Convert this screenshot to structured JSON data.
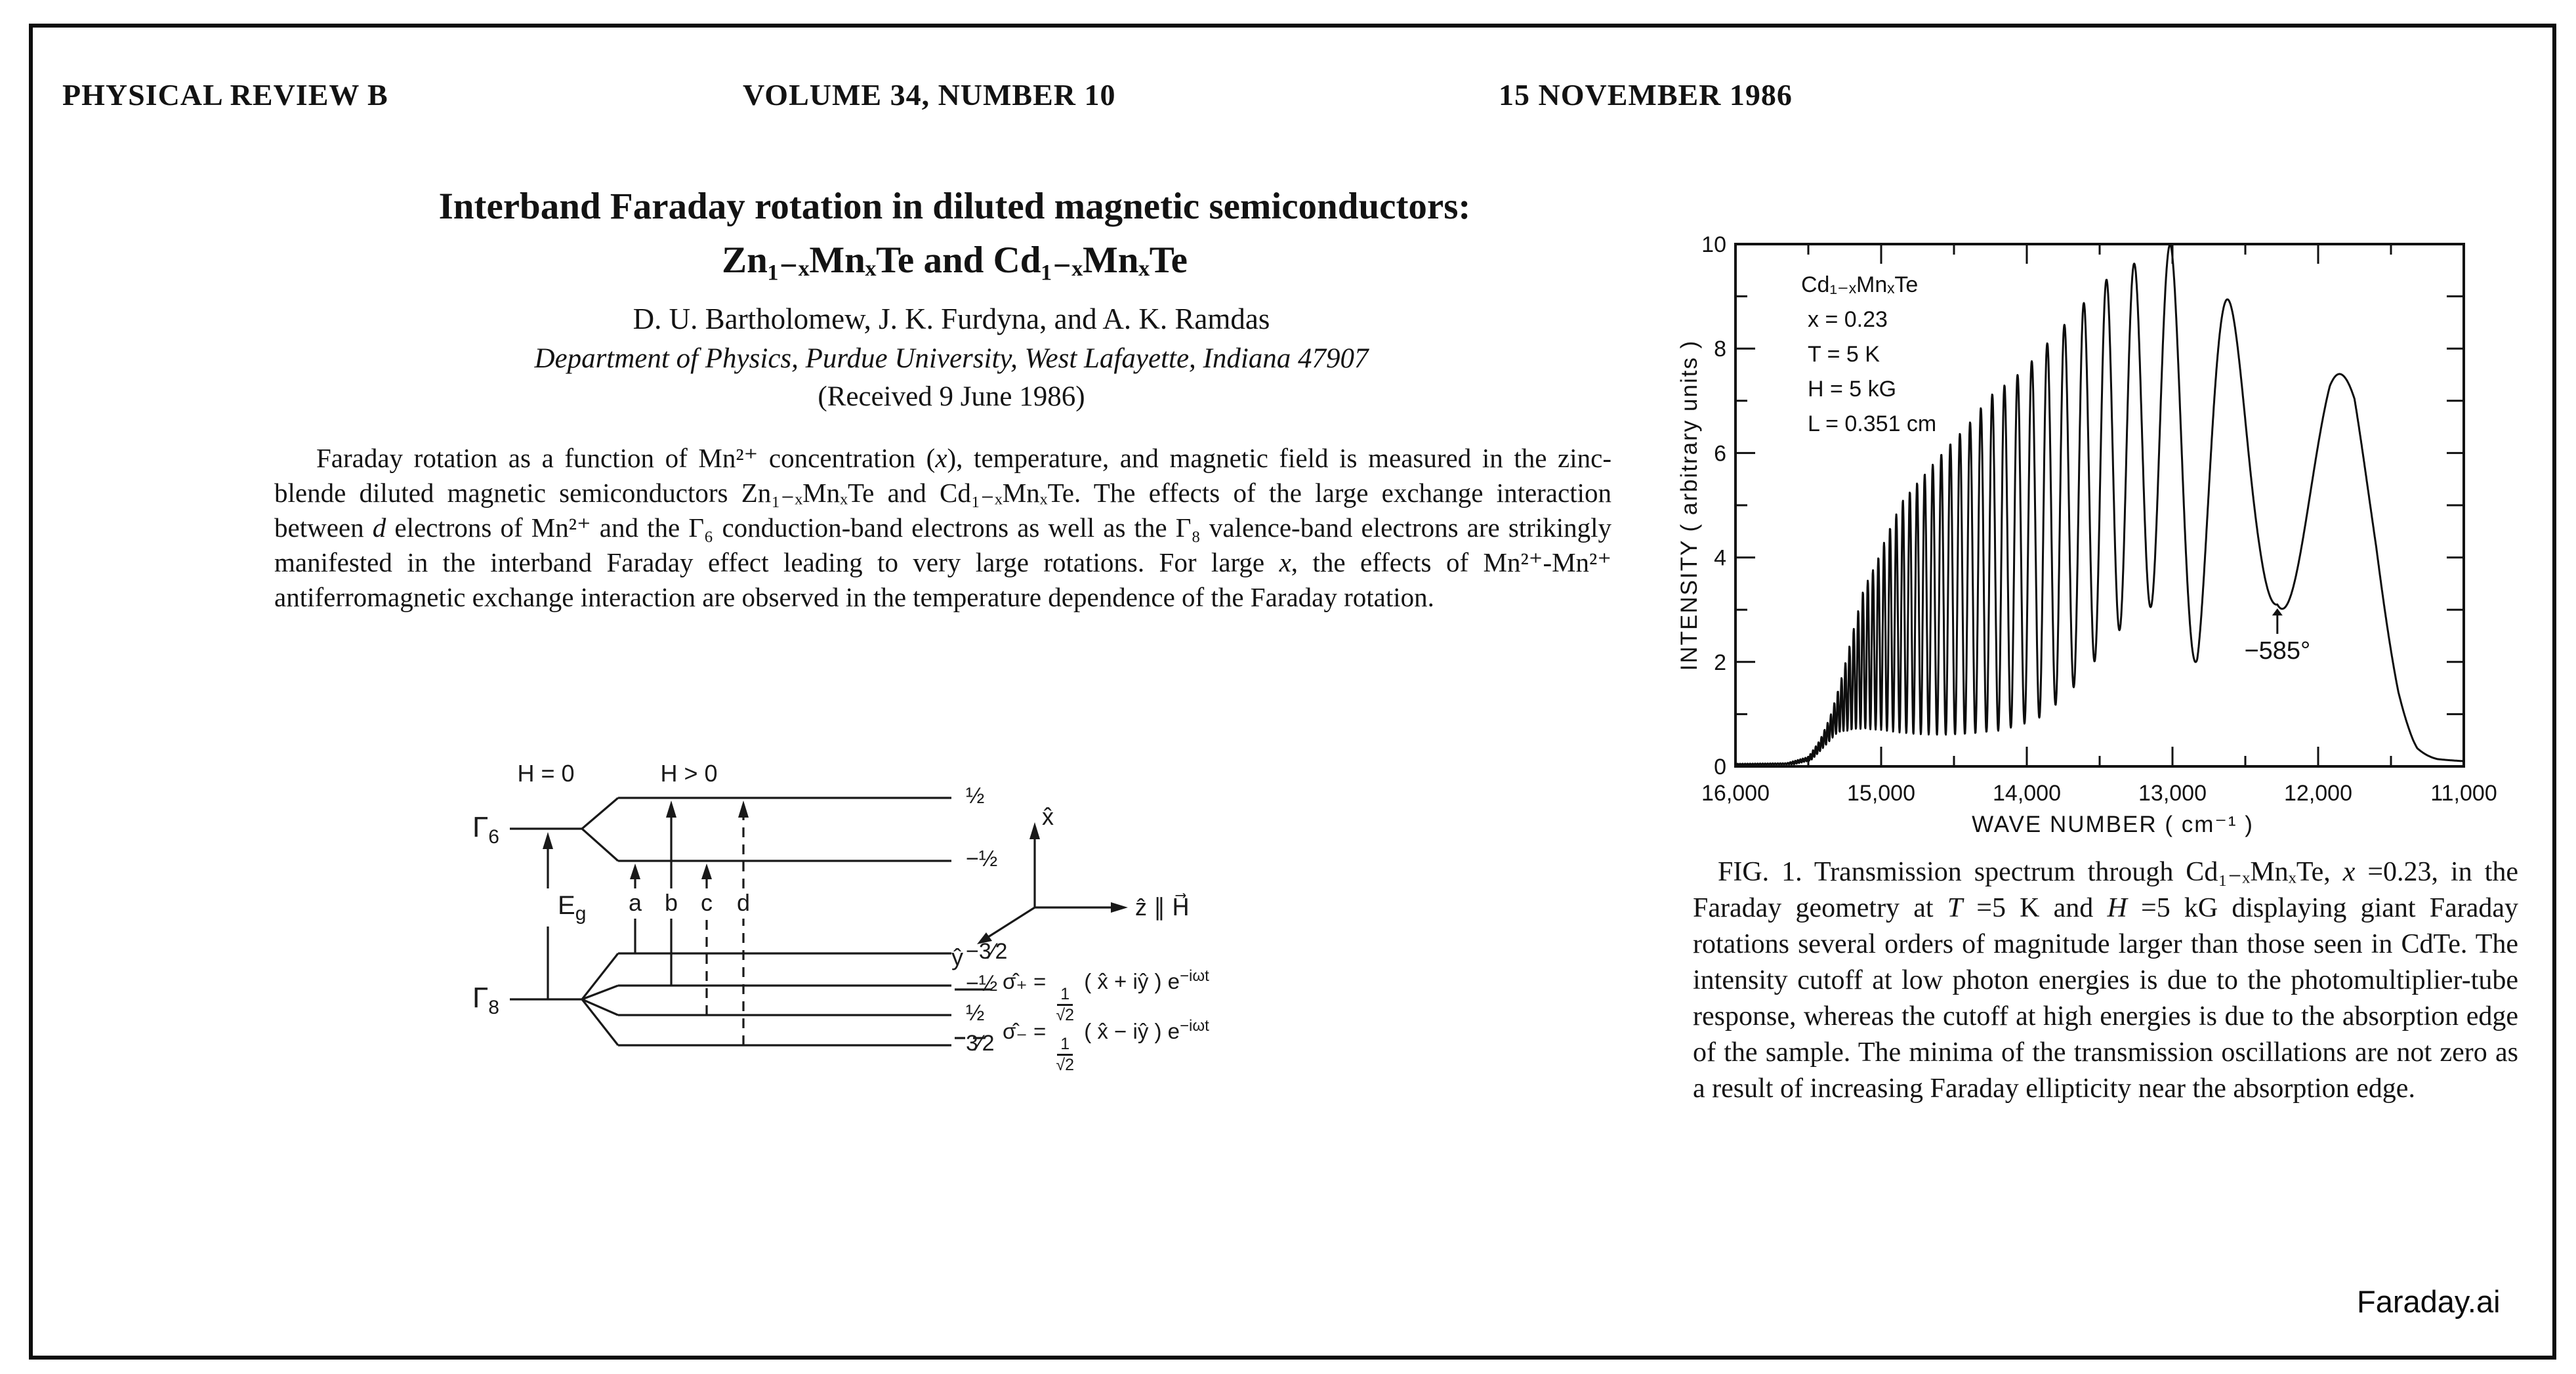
{
  "page": {
    "journal": "PHYSICAL REVIEW B",
    "volume": "VOLUME 34, NUMBER 10",
    "date": "15 NOVEMBER 1986",
    "watermark": "Faraday.ai"
  },
  "article": {
    "title_line1": "Interband Faraday rotation in diluted magnetic semiconductors:",
    "title_line2": "Zn₁₋ₓMnₓTe and Cd₁₋ₓMnₓTe",
    "authors": "D. U. Bartholomew, J. K. Furdyna, and A. K. Ramdas",
    "affiliation": "Department of Physics, Purdue University, West Lafayette, Indiana 47907",
    "received": "(Received 9 June 1986)",
    "abstract_segments": [
      {
        "t": "Faraday rotation as a function of Mn²⁺ concentration ("
      },
      {
        "t": "x",
        "s": "i"
      },
      {
        "t": "), temperature, and magnetic field is measured in the zinc-blende diluted magnetic semiconductors Zn₁₋ₓMnₓTe and Cd₁₋ₓMnₓTe.  The effects of the large exchange interaction between "
      },
      {
        "t": "d",
        "s": "i"
      },
      {
        "t": " electrons of Mn²⁺ and the Γ₆ conduction-band electrons as well as the Γ₈ valence-band electrons are strikingly manifested in the interband Faraday effect leading to very large rotations.  For large "
      },
      {
        "t": "x",
        "s": "i"
      },
      {
        "t": ", the effects of Mn²⁺-Mn²⁺ antiferromagnetic exchange interaction are observed in the temperature dependence of the Faraday rotation."
      }
    ]
  },
  "diagram": {
    "field_zero": "H = 0",
    "field_pos": "H > 0",
    "gamma6_base": "Γ",
    "gamma6_sub": "6",
    "gamma8_base": "Γ",
    "gamma8_sub": "8",
    "eg_base": "E",
    "eg_sub": "g",
    "transitions": [
      "a",
      "b",
      "c",
      "d"
    ],
    "g6_levels": [
      "½",
      "−½"
    ],
    "g8_levels": [
      "−3⁄2",
      "−½",
      "½",
      "3⁄2"
    ],
    "axis_x": "x̂",
    "axis_y": "ŷ",
    "axis_z": "ẑ ∥ H⃗",
    "sigma_plus": {
      "lhs": "σ̂₊",
      "equals": "=",
      "numerator": "1",
      "denominator": "√2",
      "vector": "( x̂ + iŷ ) e",
      "exponent": "−iωt"
    },
    "sigma_minus": {
      "lhs": "σ̂₋",
      "equals": "=",
      "numerator": "1",
      "denominator": "√2",
      "vector": "( x̂ − iŷ ) e",
      "exponent": "−iωt"
    }
  },
  "figure": {
    "caption_segments": [
      {
        "t": "FIG. 1.  Transmission spectrum through Cd₁₋ₓMnₓTe, "
      },
      {
        "t": "x",
        "s": "i"
      },
      {
        "t": " =0.23, in the Faraday geometry at "
      },
      {
        "t": "T",
        "s": "i"
      },
      {
        "t": " =5 K and "
      },
      {
        "t": "H",
        "s": "i"
      },
      {
        "t": " =5 kG displaying giant Faraday rotations several orders of magnitude larger than those seen in CdTe.  The intensity cutoff at low photon energies is due to the photomultiplier-tube response, whereas the cutoff at high energies is due to the absorption edge of the sample.  The minima of the transmission oscillations are not zero as a result of increasing Faraday ellipticity near the absorption edge."
      }
    ]
  },
  "chart_data": {
    "type": "line",
    "xlabel": "WAVE  NUMBER  ( cm⁻¹ )",
    "ylabel": "INTENSITY ( arbitrary units )",
    "xlim": [
      16000,
      11000
    ],
    "ylim": [
      0,
      10
    ],
    "x_axis_reversed": true,
    "grid": false,
    "x_major_ticks": [
      16000,
      15000,
      14000,
      13000,
      12000,
      11000
    ],
    "x_tick_labels": [
      "16,000",
      "15,000",
      "14,000",
      "13,000",
      "12,000",
      "11,000"
    ],
    "x_minor_step": 500,
    "y_major_ticks": [
      0,
      2,
      4,
      6,
      8,
      10
    ],
    "y_minor_step": 1,
    "legend_lines": [
      "Cd₁₋ₓMnₓTe",
      "x = 0.23",
      "T = 5 K",
      "H = 5 kG",
      "L = 0.351 cm"
    ],
    "annotation": {
      "text": "−585°",
      "at_wavenumber": 12280,
      "at_intensity": 3.1
    },
    "series": [
      {
        "name": "Transmission intensity",
        "style": "solid",
        "model": "interference fringes: I(k) = bottom(k) + [top(k)-bottom(k)]*(0.5+0.5*cos(phase)), fringe rate chirped, minimum anchored at 12280 cm⁻¹",
        "envelope_top": [
          [
            16000,
            0.05
          ],
          [
            15650,
            0.06
          ],
          [
            15500,
            0.18
          ],
          [
            15420,
            0.5
          ],
          [
            15350,
            0.95
          ],
          [
            15280,
            1.6
          ],
          [
            15200,
            2.5
          ],
          [
            15120,
            3.4
          ],
          [
            15040,
            3.85
          ],
          [
            14950,
            4.5
          ],
          [
            14850,
            5.1
          ],
          [
            14700,
            5.6
          ],
          [
            14550,
            6.1
          ],
          [
            14400,
            6.55
          ],
          [
            14250,
            7.1
          ],
          [
            14100,
            7.4
          ],
          [
            13950,
            7.8
          ],
          [
            13800,
            8.3
          ],
          [
            13650,
            8.7
          ],
          [
            13530,
            9.2
          ],
          [
            13400,
            9.4
          ],
          [
            13280,
            9.6
          ],
          [
            13150,
            9.8
          ],
          [
            13010,
            10.0
          ],
          [
            12900,
            9.7
          ],
          [
            12750,
            9.2
          ],
          [
            12600,
            8.9
          ],
          [
            12450,
            8.6
          ],
          [
            12300,
            8.4
          ],
          [
            12150,
            8.25
          ],
          [
            11920,
            8.05
          ],
          [
            11750,
            7.1
          ],
          [
            11600,
            5.0
          ],
          [
            11450,
            2.4
          ],
          [
            11320,
            0.8
          ],
          [
            11180,
            0.22
          ],
          [
            11000,
            0.12
          ]
        ],
        "envelope_bottom": [
          [
            16000,
            0.03
          ],
          [
            15600,
            0.04
          ],
          [
            15480,
            0.12
          ],
          [
            15400,
            0.35
          ],
          [
            15300,
            0.65
          ],
          [
            15150,
            0.72
          ],
          [
            15000,
            0.7
          ],
          [
            14800,
            0.62
          ],
          [
            14600,
            0.6
          ],
          [
            14400,
            0.62
          ],
          [
            14200,
            0.68
          ],
          [
            14050,
            0.78
          ],
          [
            13900,
            0.95
          ],
          [
            13750,
            1.3
          ],
          [
            13600,
            1.75
          ],
          [
            13450,
            2.35
          ],
          [
            13300,
            2.8
          ],
          [
            13150,
            3.05
          ],
          [
            13020,
            3.1
          ],
          [
            12950,
            2.7
          ],
          [
            12830,
            1.9
          ],
          [
            12700,
            2.3
          ],
          [
            12550,
            2.7
          ],
          [
            12400,
            3.0
          ],
          [
            12280,
            3.1
          ],
          [
            12100,
            2.2
          ],
          [
            11900,
            1.2
          ],
          [
            11600,
            0.45
          ],
          [
            11350,
            0.16
          ],
          [
            11000,
            0.1
          ]
        ],
        "fringe_cycles_per_1000_cm": [
          [
            15500,
            58
          ],
          [
            15420,
            50
          ],
          [
            15350,
            44
          ],
          [
            15280,
            39
          ],
          [
            15200,
            34
          ],
          [
            15120,
            30
          ],
          [
            15040,
            27
          ],
          [
            14950,
            24
          ],
          [
            14850,
            21.5
          ],
          [
            14700,
            18.5
          ],
          [
            14550,
            16
          ],
          [
            14400,
            14
          ],
          [
            14250,
            12.5
          ],
          [
            14100,
            11
          ],
          [
            13950,
            9.7
          ],
          [
            13800,
            8.5
          ],
          [
            13650,
            7.3
          ],
          [
            13530,
            6.4
          ],
          [
            13400,
            5.5
          ],
          [
            13280,
            4.8
          ],
          [
            13150,
            4.1
          ],
          [
            13010,
            3.4
          ],
          [
            12900,
            2.75
          ],
          [
            12750,
            2.2
          ],
          [
            12600,
            1.8
          ],
          [
            12450,
            1.45
          ],
          [
            12300,
            1.2
          ],
          [
            12150,
            1.15
          ],
          [
            12000,
            1.0
          ],
          [
            11850,
            0.85
          ],
          [
            11600,
            0.65
          ],
          [
            11000,
            0.55
          ]
        ],
        "phase_anchor_minimum_at": 12280
      }
    ]
  }
}
